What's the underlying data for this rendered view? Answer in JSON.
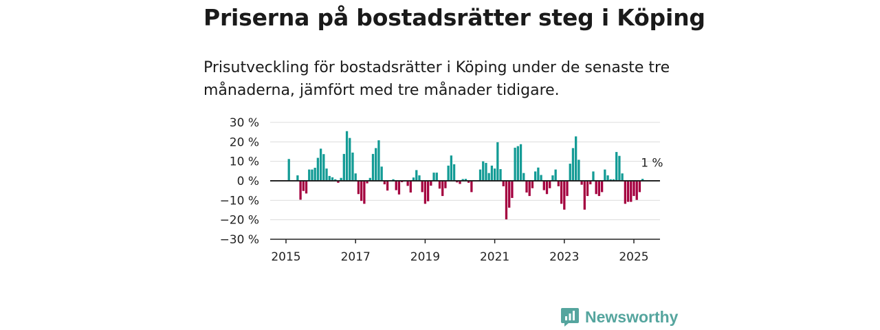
{
  "title": "Priserna på bostadsrätter steg i Köping",
  "subtitle": "Prisutveckling för bostadsrätter i Köping under de senaste tre månaderna, jämfört med tre månader tidigare.",
  "colors": {
    "positive": "#139b95",
    "negative": "#a4003f",
    "zero_line": "#222222",
    "grid": "#dcdcdc",
    "logo": "#55a59e"
  },
  "logo": {
    "text": "Newsworthy",
    "icon": "bar-chart-speech-bubble-icon"
  },
  "chart_data": {
    "type": "bar",
    "xlabel": "",
    "ylabel": "",
    "y_unit": "%",
    "ylim": [
      -30,
      30
    ],
    "y_ticks": [
      30,
      20,
      10,
      0,
      -10,
      -20,
      -30
    ],
    "y_tick_labels": [
      "30 %",
      "20 %",
      "10 %",
      "0 %",
      "−10 %",
      "−20 %",
      "−30 %"
    ],
    "x_ticks": [
      "2015",
      "2017",
      "2019",
      "2021",
      "2023",
      "2025"
    ],
    "grid": true,
    "annotation": {
      "text": "1 %",
      "x": "2025-03"
    },
    "points": [
      {
        "x": "2015-02",
        "y": 11.2
      },
      {
        "x": "2015-05",
        "y": 2.8
      },
      {
        "x": "2015-06",
        "y": -9.7
      },
      {
        "x": "2015-07",
        "y": -5.2
      },
      {
        "x": "2015-08",
        "y": -6.5
      },
      {
        "x": "2015-09",
        "y": 5.8
      },
      {
        "x": "2015-10",
        "y": 5.8
      },
      {
        "x": "2015-11",
        "y": 6.7
      },
      {
        "x": "2015-12",
        "y": 11.8
      },
      {
        "x": "2016-01",
        "y": 16.5
      },
      {
        "x": "2016-02",
        "y": 13.7
      },
      {
        "x": "2016-03",
        "y": 6.3
      },
      {
        "x": "2016-04",
        "y": 2.5
      },
      {
        "x": "2016-05",
        "y": 1.8
      },
      {
        "x": "2016-06",
        "y": 0.8
      },
      {
        "x": "2016-07",
        "y": -1.0
      },
      {
        "x": "2016-08",
        "y": 1.5
      },
      {
        "x": "2016-09",
        "y": 13.8
      },
      {
        "x": "2016-10",
        "y": 25.5
      },
      {
        "x": "2016-11",
        "y": 22.0
      },
      {
        "x": "2016-12",
        "y": 14.5
      },
      {
        "x": "2017-01",
        "y": 3.8
      },
      {
        "x": "2017-02",
        "y": -6.8
      },
      {
        "x": "2017-03",
        "y": -10.3
      },
      {
        "x": "2017-04",
        "y": -11.8
      },
      {
        "x": "2017-05",
        "y": -1.3
      },
      {
        "x": "2017-06",
        "y": 1.5
      },
      {
        "x": "2017-07",
        "y": 13.8
      },
      {
        "x": "2017-08",
        "y": 16.8
      },
      {
        "x": "2017-09",
        "y": 20.8
      },
      {
        "x": "2017-10",
        "y": 7.3
      },
      {
        "x": "2017-11",
        "y": -1.8
      },
      {
        "x": "2017-12",
        "y": -5.0
      },
      {
        "x": "2018-01",
        "y": 0.2
      },
      {
        "x": "2018-02",
        "y": 0.8
      },
      {
        "x": "2018-03",
        "y": -4.8
      },
      {
        "x": "2018-04",
        "y": -7.0
      },
      {
        "x": "2018-05",
        "y": -0.7
      },
      {
        "x": "2018-06",
        "y": -0.4
      },
      {
        "x": "2018-07",
        "y": -2.6
      },
      {
        "x": "2018-08",
        "y": -6.0
      },
      {
        "x": "2018-09",
        "y": 1.7
      },
      {
        "x": "2018-10",
        "y": 5.5
      },
      {
        "x": "2018-11",
        "y": 2.8
      },
      {
        "x": "2018-12",
        "y": -5.8
      },
      {
        "x": "2019-01",
        "y": -11.8
      },
      {
        "x": "2019-02",
        "y": -10.5
      },
      {
        "x": "2019-03",
        "y": -2.5
      },
      {
        "x": "2019-04",
        "y": 4.2
      },
      {
        "x": "2019-05",
        "y": 4.2
      },
      {
        "x": "2019-06",
        "y": -4.0
      },
      {
        "x": "2019-07",
        "y": -7.8
      },
      {
        "x": "2019-08",
        "y": -3.8
      },
      {
        "x": "2019-09",
        "y": 7.8
      },
      {
        "x": "2019-10",
        "y": 13.0
      },
      {
        "x": "2019-11",
        "y": 8.5
      },
      {
        "x": "2019-12",
        "y": -0.8
      },
      {
        "x": "2020-01",
        "y": -1.6
      },
      {
        "x": "2020-02",
        "y": 0.9
      },
      {
        "x": "2020-03",
        "y": 1.0
      },
      {
        "x": "2020-04",
        "y": -1.0
      },
      {
        "x": "2020-05",
        "y": -5.8
      },
      {
        "x": "2020-06",
        "y": 0.3
      },
      {
        "x": "2020-07",
        "y": 0.1
      },
      {
        "x": "2020-08",
        "y": 5.8
      },
      {
        "x": "2020-09",
        "y": 10.0
      },
      {
        "x": "2020-10",
        "y": 9.2
      },
      {
        "x": "2020-11",
        "y": 4.0
      },
      {
        "x": "2020-12",
        "y": 7.8
      },
      {
        "x": "2021-01",
        "y": 6.3
      },
      {
        "x": "2021-02",
        "y": 19.8
      },
      {
        "x": "2021-03",
        "y": 6.0
      },
      {
        "x": "2021-04",
        "y": -2.8
      },
      {
        "x": "2021-05",
        "y": -19.8
      },
      {
        "x": "2021-06",
        "y": -13.8
      },
      {
        "x": "2021-07",
        "y": -8.8
      },
      {
        "x": "2021-08",
        "y": 17.0
      },
      {
        "x": "2021-09",
        "y": 17.8
      },
      {
        "x": "2021-10",
        "y": 18.8
      },
      {
        "x": "2021-11",
        "y": 4.0
      },
      {
        "x": "2021-12",
        "y": -6.0
      },
      {
        "x": "2022-01",
        "y": -7.8
      },
      {
        "x": "2022-02",
        "y": -3.8
      },
      {
        "x": "2022-03",
        "y": 4.8
      },
      {
        "x": "2022-04",
        "y": 6.8
      },
      {
        "x": "2022-05",
        "y": 3.0
      },
      {
        "x": "2022-06",
        "y": -4.8
      },
      {
        "x": "2022-07",
        "y": -6.8
      },
      {
        "x": "2022-08",
        "y": -3.8
      },
      {
        "x": "2022-09",
        "y": 2.8
      },
      {
        "x": "2022-10",
        "y": 5.8
      },
      {
        "x": "2022-11",
        "y": -2.8
      },
      {
        "x": "2022-12",
        "y": -11.8
      },
      {
        "x": "2023-01",
        "y": -14.8
      },
      {
        "x": "2023-02",
        "y": -7.8
      },
      {
        "x": "2023-03",
        "y": 8.8
      },
      {
        "x": "2023-04",
        "y": 16.8
      },
      {
        "x": "2023-05",
        "y": 22.8
      },
      {
        "x": "2023-06",
        "y": 10.8
      },
      {
        "x": "2023-07",
        "y": -2.0
      },
      {
        "x": "2023-08",
        "y": -14.8
      },
      {
        "x": "2023-09",
        "y": -7.8
      },
      {
        "x": "2023-10",
        "y": -1.8
      },
      {
        "x": "2023-11",
        "y": 4.8
      },
      {
        "x": "2023-12",
        "y": -6.8
      },
      {
        "x": "2024-01",
        "y": -7.8
      },
      {
        "x": "2024-02",
        "y": -5.8
      },
      {
        "x": "2024-03",
        "y": 5.8
      },
      {
        "x": "2024-04",
        "y": 2.8
      },
      {
        "x": "2024-05",
        "y": 0.8
      },
      {
        "x": "2024-06",
        "y": 0.8
      },
      {
        "x": "2024-07",
        "y": 14.8
      },
      {
        "x": "2024-08",
        "y": 12.8
      },
      {
        "x": "2024-09",
        "y": 3.8
      },
      {
        "x": "2024-10",
        "y": -11.8
      },
      {
        "x": "2024-11",
        "y": -10.8
      },
      {
        "x": "2024-12",
        "y": -10.8
      },
      {
        "x": "2025-01",
        "y": -7.8
      },
      {
        "x": "2025-02",
        "y": -9.8
      },
      {
        "x": "2025-03",
        "y": -5.8
      },
      {
        "x": "2025-04",
        "y": 1.0
      }
    ]
  }
}
